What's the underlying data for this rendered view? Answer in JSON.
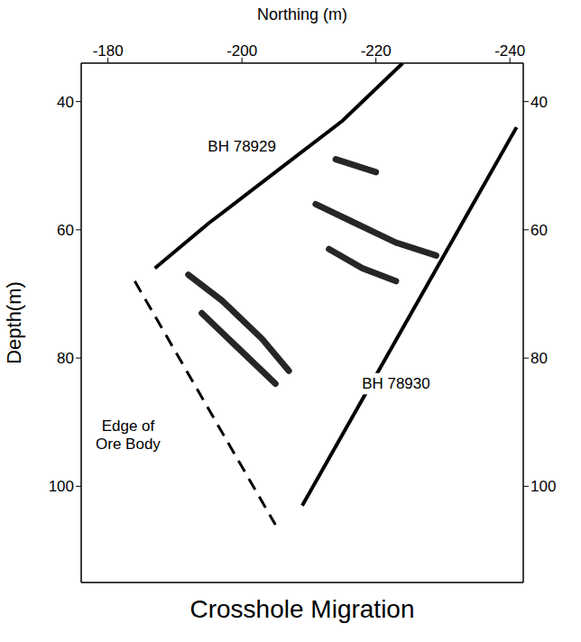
{
  "chart_data": {
    "type": "line",
    "title": "Crosshole Migration",
    "x_label": "Northing (m)",
    "y_label": "Depth(m)",
    "xlim": [
      -176,
      -242
    ],
    "xticks": [
      -180,
      -200,
      -220,
      -240
    ],
    "ylim": [
      115,
      34
    ],
    "yticks": [
      40,
      60,
      80,
      100
    ],
    "grid": false,
    "tick_labels": true,
    "series": [
      {
        "name": "BH 78929",
        "color": "#000000",
        "line_style": "solid",
        "x": [
          -187,
          -195,
          -205,
          -215,
          -224
        ],
        "values": [
          66,
          59,
          51,
          43,
          34
        ],
        "label_x": -200,
        "label_y": 47
      },
      {
        "name": "BH 78930",
        "color": "#000000",
        "line_style": "solid",
        "x": [
          -209,
          -241
        ],
        "values": [
          103,
          44
        ],
        "label_x": -223,
        "label_y": 84
      },
      {
        "name": "Edge of Ore Body",
        "color": "#000000",
        "line_style": "dashed",
        "x": [
          -184,
          -205
        ],
        "values": [
          68,
          106
        ],
        "label_x": -183,
        "label_y": 92
      }
    ],
    "reflectors": [
      {
        "color": "#000000",
        "x": [
          -192,
          -197,
          -203,
          -207
        ],
        "values": [
          67,
          71,
          77,
          82
        ]
      },
      {
        "color": "#000000",
        "x": [
          -194,
          -199,
          -205
        ],
        "values": [
          73,
          78,
          84
        ]
      },
      {
        "color": "#000000",
        "x": [
          -211,
          -217,
          -223,
          -229
        ],
        "values": [
          56,
          59,
          62,
          64
        ]
      },
      {
        "color": "#000000",
        "x": [
          -213,
          -218,
          -223
        ],
        "values": [
          63,
          66,
          68
        ]
      },
      {
        "color": "#000000",
        "x": [
          -214,
          -220
        ],
        "values": [
          49,
          51
        ]
      }
    ]
  }
}
